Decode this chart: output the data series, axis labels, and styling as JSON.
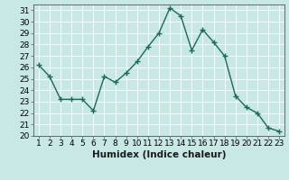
{
  "x": [
    1,
    2,
    3,
    4,
    5,
    6,
    7,
    8,
    9,
    10,
    11,
    12,
    13,
    14,
    15,
    16,
    17,
    18,
    19,
    20,
    21,
    22,
    23
  ],
  "y": [
    26.2,
    25.2,
    23.2,
    23.2,
    23.2,
    22.2,
    25.2,
    24.7,
    25.5,
    26.5,
    27.8,
    29.0,
    31.2,
    30.5,
    27.5,
    29.3,
    28.2,
    27.0,
    23.5,
    22.5,
    22.0,
    20.7,
    20.4
  ],
  "line_color": "#1a6b5a",
  "marker": "+",
  "marker_size": 4,
  "bg_color": "#c8e8e5",
  "grid_color": "#aed4d0",
  "xlabel": "Humidex (Indice chaleur)",
  "ylim": [
    20,
    31.5
  ],
  "xlim": [
    0.5,
    23.5
  ],
  "yticks": [
    20,
    21,
    22,
    23,
    24,
    25,
    26,
    27,
    28,
    29,
    30,
    31
  ],
  "xticks": [
    1,
    2,
    3,
    4,
    5,
    6,
    7,
    8,
    9,
    10,
    11,
    12,
    13,
    14,
    15,
    16,
    17,
    18,
    19,
    20,
    21,
    22,
    23
  ],
  "xlabel_fontsize": 7.5,
  "tick_fontsize": 6.5,
  "linewidth": 1.0,
  "markeredgewidth": 1.0
}
